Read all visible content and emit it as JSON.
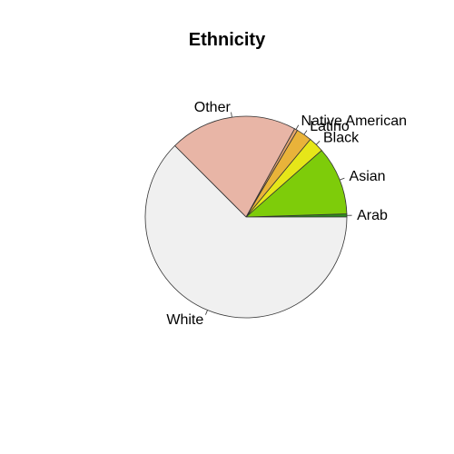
{
  "chart_data": {
    "type": "pie",
    "title": "Ethnicity",
    "slices": [
      {
        "label": "Arab",
        "value": 0.5,
        "color": "#2E8B1E"
      },
      {
        "label": "Asian",
        "value": 11.0,
        "color": "#7ECC0A"
      },
      {
        "label": "Black",
        "value": 2.5,
        "color": "#E6E619"
      },
      {
        "label": "Latino",
        "value": 2.5,
        "color": "#E9B33A"
      },
      {
        "label": "Native American",
        "value": 0.5,
        "color": "#E3A46E"
      },
      {
        "label": "Other",
        "value": 20.5,
        "color": "#E8B5A6"
      },
      {
        "label": "White",
        "value": 62.5,
        "color": "#F0F0F0"
      }
    ],
    "start_angle_deg": 0,
    "direction": "counterclockwise"
  }
}
